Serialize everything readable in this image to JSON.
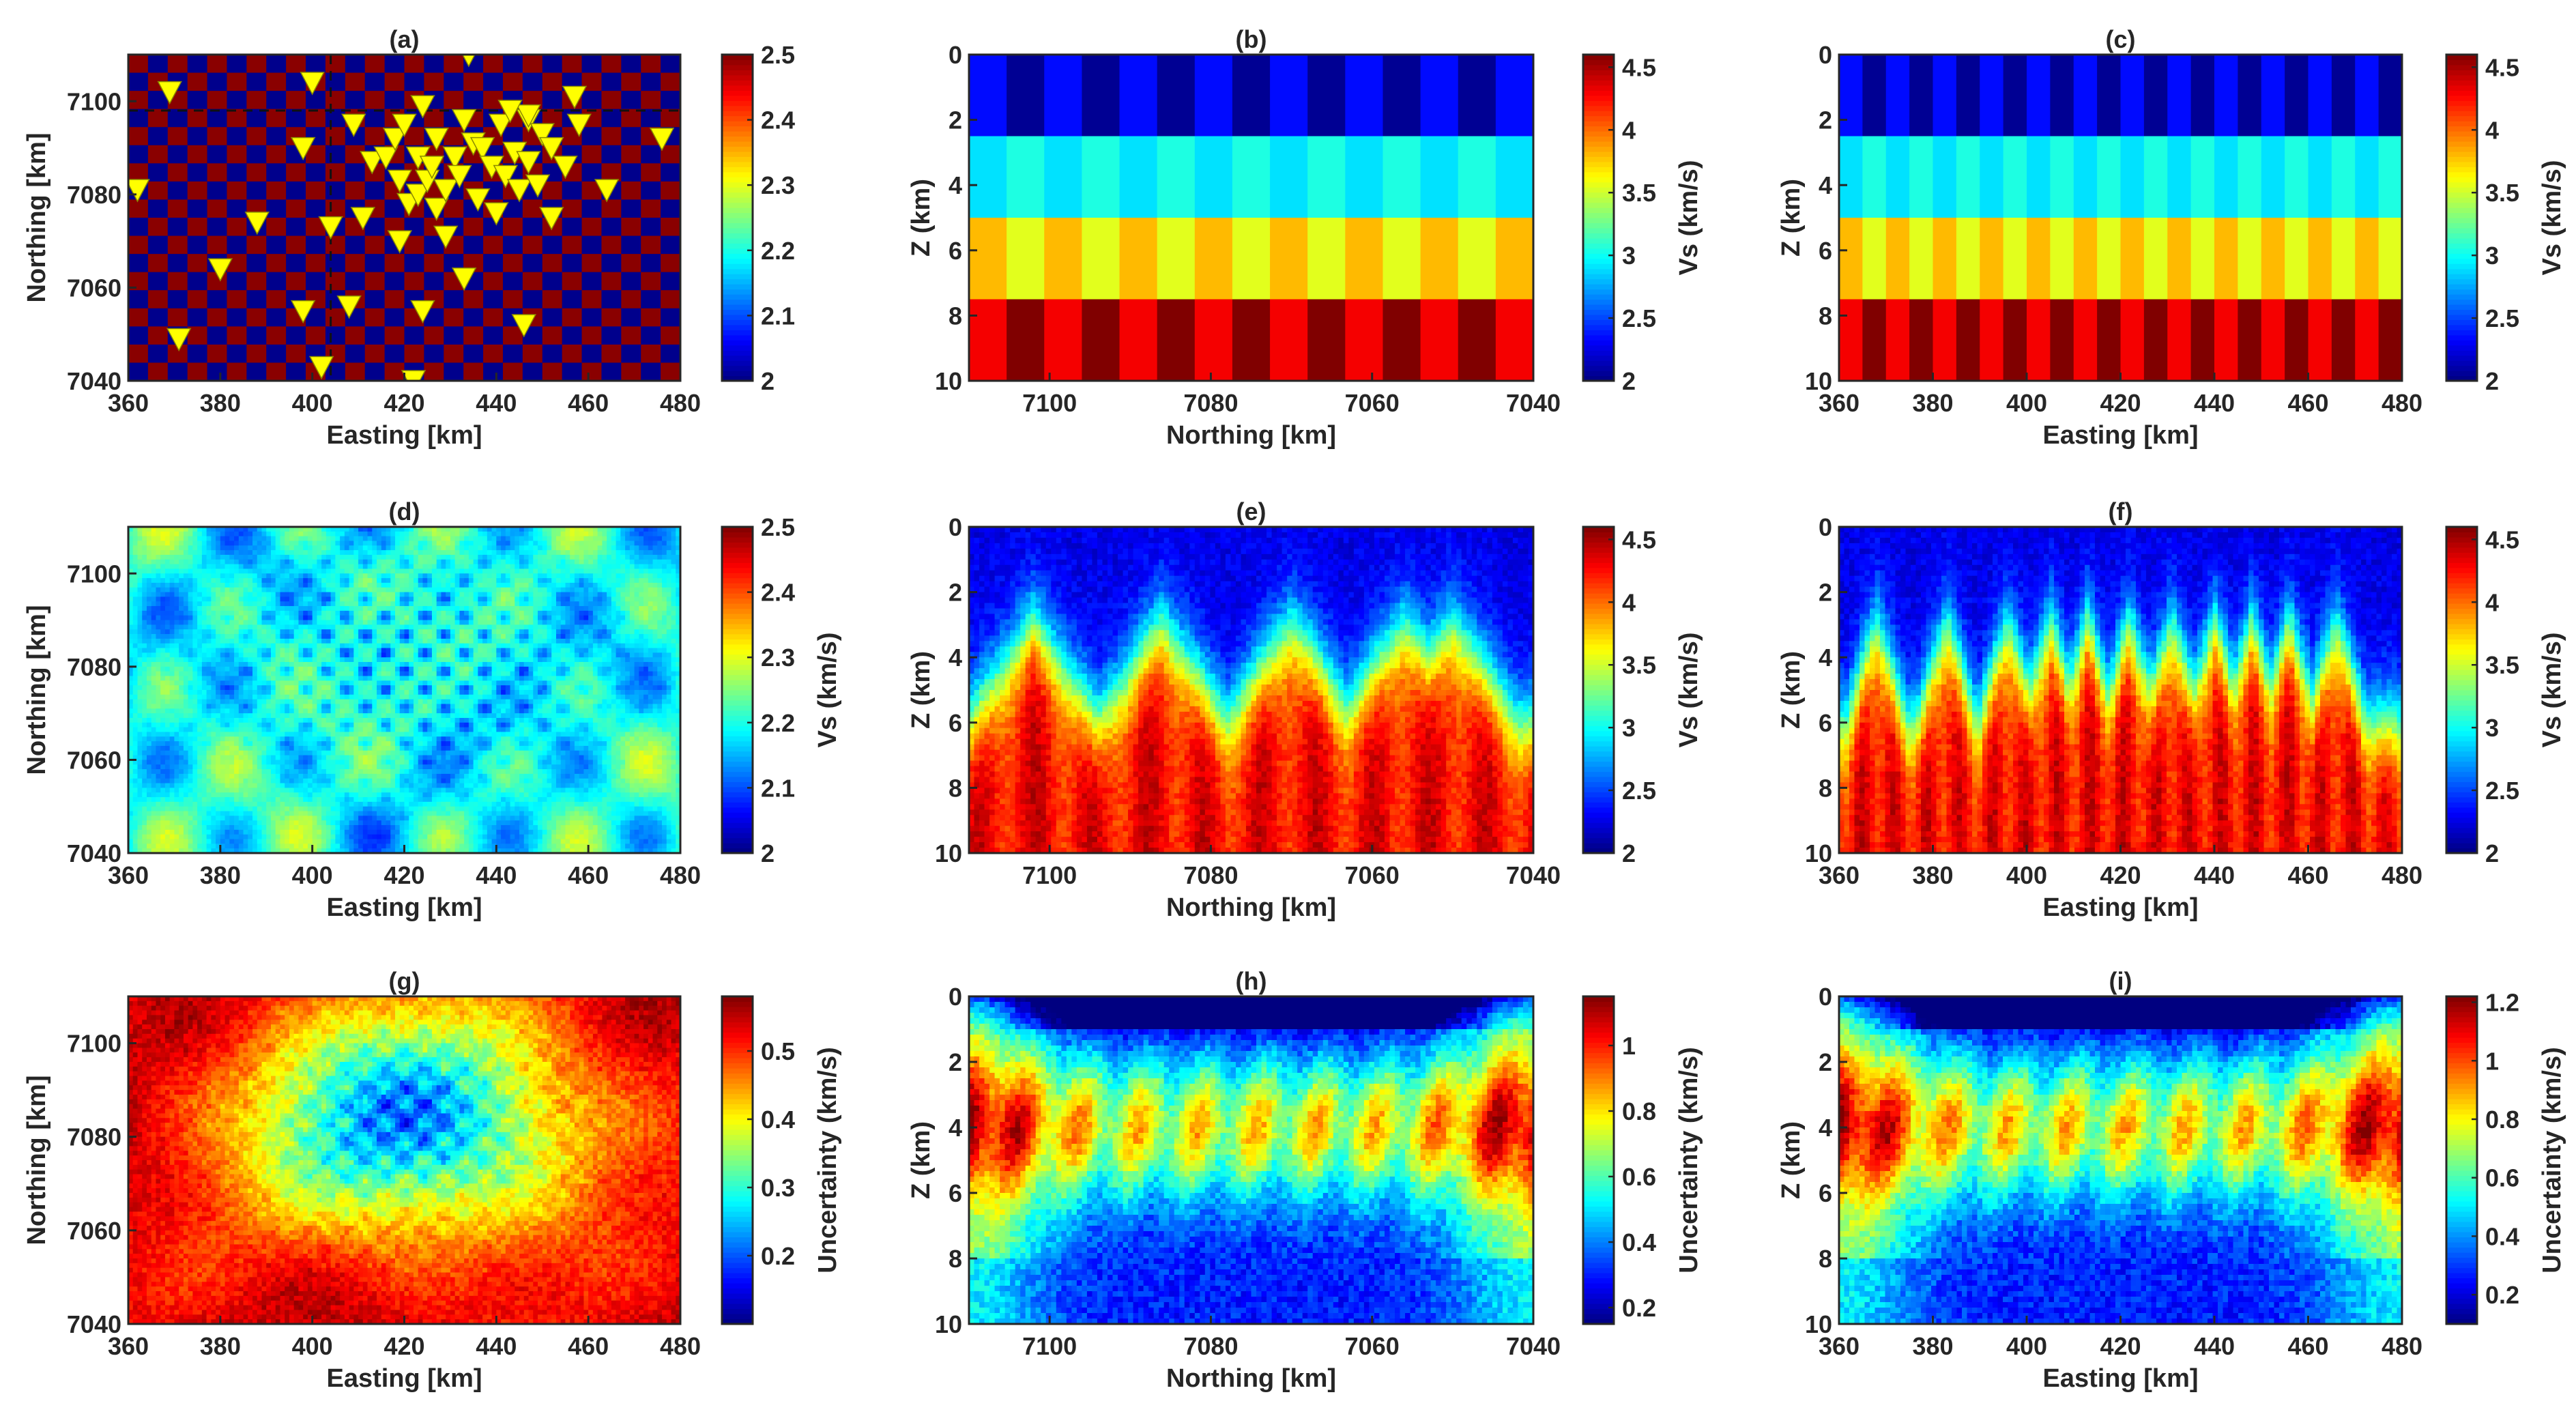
{
  "chart_data": [
    {
      "id": "a",
      "type": "heatmap",
      "title": "(a)",
      "xlabel": "Easting [km]",
      "ylabel": "Northing [km]",
      "colorbar_label": "",
      "xlim": [
        360,
        480
      ],
      "ylim": [
        7040,
        7110
      ],
      "xticks": [
        360,
        380,
        400,
        420,
        440,
        460,
        480
      ],
      "yticks": [
        7040,
        7060,
        7080,
        7100
      ],
      "clim": [
        2,
        2.5
      ],
      "cticks": [
        2,
        2.1,
        2.2,
        2.3,
        2.4,
        2.5
      ],
      "pattern": "checker-map",
      "stations_marker": "yellow-triangle",
      "stations": [
        [
          362,
          7081
        ],
        [
          369,
          7102
        ],
        [
          371,
          7049
        ],
        [
          380,
          7064
        ],
        [
          388,
          7074
        ],
        [
          398,
          7055
        ],
        [
          398,
          7090
        ],
        [
          400,
          7104
        ],
        [
          402,
          7043
        ],
        [
          404,
          7073
        ],
        [
          408,
          7056
        ],
        [
          409,
          7095
        ],
        [
          411,
          7075
        ],
        [
          413,
          7087
        ],
        [
          416,
          7088
        ],
        [
          418,
          7092
        ],
        [
          419,
          7070
        ],
        [
          419,
          7083
        ],
        [
          420,
          7095
        ],
        [
          421,
          7078
        ],
        [
          423,
          7080
        ],
        [
          423,
          7088
        ],
        [
          424,
          7099
        ],
        [
          424,
          7055
        ],
        [
          422,
          7040
        ],
        [
          425,
          7083
        ],
        [
          426,
          7086
        ],
        [
          427,
          7077
        ],
        [
          427,
          7092
        ],
        [
          429,
          7071
        ],
        [
          429,
          7081
        ],
        [
          431,
          7088
        ],
        [
          432,
          7084
        ],
        [
          433,
          7062
        ],
        [
          433,
          7096
        ],
        [
          434,
          7110
        ],
        [
          435,
          7091
        ],
        [
          436,
          7079
        ],
        [
          437,
          7090
        ],
        [
          439,
          7086
        ],
        [
          440,
          7076
        ],
        [
          441,
          7095
        ],
        [
          442,
          7084
        ],
        [
          444,
          7089
        ],
        [
          445,
          7081
        ],
        [
          446,
          7052
        ],
        [
          447,
          7096
        ],
        [
          447,
          7087
        ],
        [
          449,
          7082
        ],
        [
          450,
          7093
        ],
        [
          452,
          7090
        ],
        [
          452,
          7075
        ],
        [
          455,
          7086
        ],
        [
          457,
          7101
        ],
        [
          458,
          7095
        ],
        [
          464,
          7081
        ],
        [
          476,
          7092
        ],
        [
          447,
          7097
        ],
        [
          443,
          7098
        ]
      ]
    },
    {
      "id": "b",
      "type": "heatmap",
      "title": "(b)",
      "xlabel": "Northing [km]",
      "ylabel": "Z (km)",
      "colorbar_label": "Vs (km/s)",
      "xlim": [
        7110,
        7040
      ],
      "ylim": [
        0,
        10
      ],
      "xticks": [
        7100,
        7080,
        7060,
        7040
      ],
      "yticks": [
        0,
        2,
        4,
        6,
        8,
        10
      ],
      "clim": [
        2,
        4.6
      ],
      "cticks": [
        2,
        2.5,
        3,
        3.5,
        4,
        4.5
      ],
      "pattern": "layered-checker",
      "layers": [
        {
          "z": [
            0,
            2.5
          ],
          "v": [
            2.35,
            2.05
          ]
        },
        {
          "z": [
            2.5,
            5
          ],
          "v": [
            2.9,
            3.05
          ]
        },
        {
          "z": [
            5,
            7.5
          ],
          "v": [
            3.8,
            3.55
          ]
        },
        {
          "z": [
            7.5,
            10
          ],
          "v": [
            4.3,
            4.6
          ]
        }
      ],
      "columns": 15
    },
    {
      "id": "c",
      "type": "heatmap",
      "title": "(c)",
      "xlabel": "Easting [km]",
      "ylabel": "Z (km)",
      "colorbar_label": "Vs (km/s)",
      "xlim": [
        360,
        480
      ],
      "ylim": [
        0,
        10
      ],
      "xticks": [
        360,
        380,
        400,
        420,
        440,
        460,
        480
      ],
      "yticks": [
        0,
        2,
        4,
        6,
        8,
        10
      ],
      "clim": [
        2,
        4.6
      ],
      "cticks": [
        2,
        2.5,
        3,
        3.5,
        4,
        4.5
      ],
      "pattern": "layered-checker",
      "layers": [
        {
          "z": [
            0,
            2.5
          ],
          "v": [
            2.35,
            2.05
          ]
        },
        {
          "z": [
            2.5,
            5
          ],
          "v": [
            2.9,
            3.05
          ]
        },
        {
          "z": [
            5,
            7.5
          ],
          "v": [
            3.8,
            3.55
          ]
        },
        {
          "z": [
            7.5,
            10
          ],
          "v": [
            4.3,
            4.6
          ]
        }
      ],
      "columns": 24
    },
    {
      "id": "d",
      "type": "heatmap",
      "title": "(d)",
      "xlabel": "Easting [km]",
      "ylabel": "Northing [km]",
      "colorbar_label": "Vs (km/s)",
      "xlim": [
        360,
        480
      ],
      "ylim": [
        7040,
        7110
      ],
      "xticks": [
        360,
        380,
        400,
        420,
        440,
        460,
        480
      ],
      "yticks": [
        7040,
        7060,
        7080,
        7100
      ],
      "clim": [
        2,
        2.5
      ],
      "cticks": [
        2,
        2.1,
        2.2,
        2.3,
        2.4,
        2.5
      ],
      "pattern": "recovered-map"
    },
    {
      "id": "e",
      "type": "heatmap",
      "title": "(e)",
      "xlabel": "Northing [km]",
      "ylabel": "Z (km)",
      "colorbar_label": "Vs (km/s)",
      "xlim": [
        7110,
        7040
      ],
      "ylim": [
        0,
        10
      ],
      "xticks": [
        7100,
        7080,
        7060,
        7040
      ],
      "yticks": [
        0,
        2,
        4,
        6,
        8,
        10
      ],
      "clim": [
        2,
        4.6
      ],
      "cticks": [
        2,
        2.5,
        3,
        3.5,
        4,
        4.5
      ],
      "pattern": "recovered-section",
      "peaks": [
        7102,
        7086,
        7070,
        7056,
        7050
      ]
    },
    {
      "id": "f",
      "type": "heatmap",
      "title": "(f)",
      "xlabel": "Easting [km]",
      "ylabel": "Z (km)",
      "colorbar_label": "Vs (km/s)",
      "xlim": [
        360,
        480
      ],
      "ylim": [
        0,
        10
      ],
      "xticks": [
        360,
        380,
        400,
        420,
        440,
        460,
        480
      ],
      "yticks": [
        0,
        2,
        4,
        6,
        8,
        10
      ],
      "clim": [
        2,
        4.6
      ],
      "cticks": [
        2,
        2.5,
        3,
        3.5,
        4,
        4.5
      ],
      "pattern": "recovered-section",
      "peaks": [
        368,
        383,
        396,
        405,
        413,
        422,
        431,
        440,
        448,
        456,
        466
      ]
    },
    {
      "id": "g",
      "type": "heatmap",
      "title": "(g)",
      "xlabel": "Easting [km]",
      "ylabel": "Northing [km]",
      "colorbar_label": "Uncertainty (km/s)",
      "xlim": [
        360,
        480
      ],
      "ylim": [
        7040,
        7110
      ],
      "xticks": [
        360,
        380,
        400,
        420,
        440,
        460,
        480
      ],
      "yticks": [
        7040,
        7060,
        7080,
        7100
      ],
      "clim": [
        0.1,
        0.58
      ],
      "cticks": [
        0.2,
        0.3,
        0.4,
        0.5
      ],
      "pattern": "uncertainty-map"
    },
    {
      "id": "h",
      "type": "heatmap",
      "title": "(h)",
      "xlabel": "Northing [km]",
      "ylabel": "Z (km)",
      "colorbar_label": "Uncertainty (km/s)",
      "xlim": [
        7110,
        7040
      ],
      "ylim": [
        0,
        10
      ],
      "xticks": [
        7100,
        7080,
        7060,
        7040
      ],
      "yticks": [
        0,
        2,
        4,
        6,
        8,
        10
      ],
      "clim": [
        0.15,
        1.15
      ],
      "cticks": [
        0.2,
        0.4,
        0.6,
        0.8,
        1
      ],
      "pattern": "uncertainty-section"
    },
    {
      "id": "i",
      "type": "heatmap",
      "title": "(i)",
      "xlabel": "Easting [km]",
      "ylabel": "Z (km)",
      "colorbar_label": "Uncertainty (km/s)",
      "xlim": [
        360,
        480
      ],
      "ylim": [
        0,
        10
      ],
      "xticks": [
        360,
        380,
        400,
        420,
        440,
        460,
        480
      ],
      "yticks": [
        0,
        2,
        4,
        6,
        8,
        10
      ],
      "clim": [
        0.1,
        1.22
      ],
      "cticks": [
        0.2,
        0.4,
        0.6,
        0.8,
        1,
        1.2
      ],
      "pattern": "uncertainty-section"
    }
  ]
}
